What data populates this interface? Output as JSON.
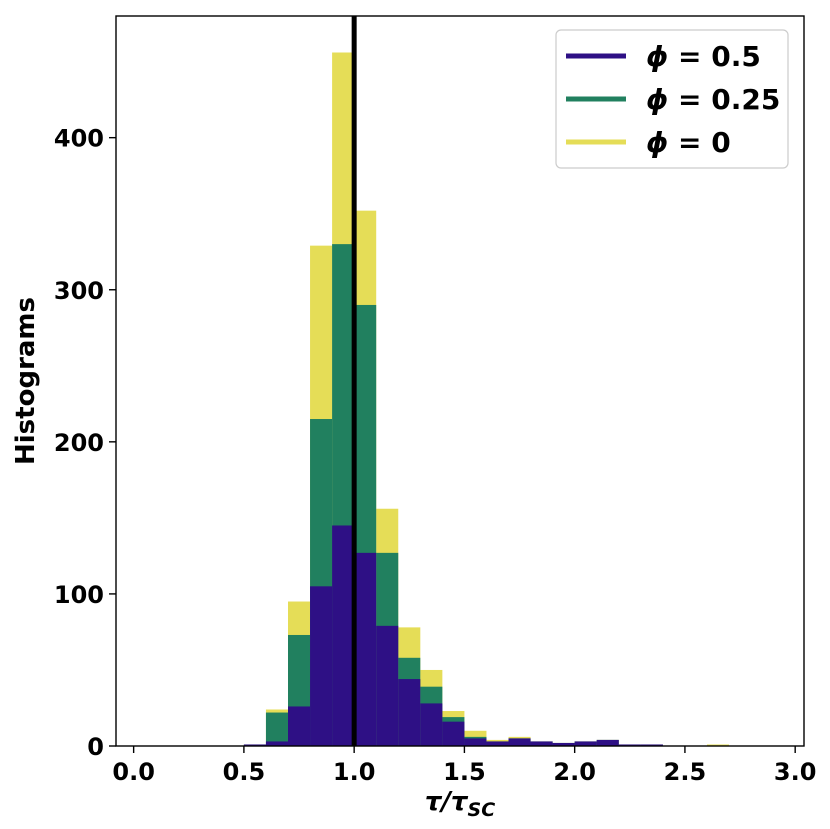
{
  "chart_data": {
    "type": "bar",
    "subtype": "overlaid-histogram",
    "xlabel": "τ/τ_SC",
    "xlabel_main": "τ/τ",
    "xlabel_sub": "SC",
    "ylabel": "Histograms",
    "xlim": [
      -0.08,
      3.04
    ],
    "ylim": [
      0,
      480
    ],
    "xticks": [
      0.0,
      0.5,
      1.0,
      1.5,
      2.0,
      2.5,
      3.0
    ],
    "xtick_labels": [
      "0.0",
      "0.5",
      "1.0",
      "1.5",
      "2.0",
      "2.5",
      "3.0"
    ],
    "yticks": [
      0,
      100,
      200,
      300,
      400
    ],
    "ytick_labels": [
      "0",
      "100",
      "200",
      "300",
      "400"
    ],
    "grid": false,
    "legend_position": "top-right",
    "bin_width": 0.1,
    "reference_line": {
      "x": 1.0,
      "color": "#000000"
    },
    "series": [
      {
        "name": "ϕ = 0",
        "legend_label": "ϕ = 0",
        "color": "#e5dd57",
        "bins": [
          0.5,
          0.6,
          0.7,
          0.8,
          0.9,
          1.0,
          1.1,
          1.2,
          1.3,
          1.4,
          1.5,
          1.6,
          1.7,
          1.8,
          1.9,
          2.0,
          2.1,
          2.2,
          2.3,
          2.6
        ],
        "values": [
          1,
          24,
          95,
          329,
          456,
          352,
          156,
          78,
          50,
          23,
          10,
          4,
          6,
          3,
          2,
          3,
          4,
          1,
          1,
          1
        ]
      },
      {
        "name": "ϕ = 0.25",
        "legend_label": "ϕ = 0.25",
        "color": "#21805f",
        "bins": [
          0.5,
          0.6,
          0.7,
          0.8,
          0.9,
          1.0,
          1.1,
          1.2,
          1.3,
          1.4,
          1.5,
          1.6,
          1.7,
          1.8,
          1.9,
          2.0,
          2.1,
          2.2,
          2.3
        ],
        "values": [
          1,
          22,
          73,
          215,
          330,
          290,
          127,
          58,
          39,
          19,
          6,
          3,
          5,
          3,
          2,
          3,
          4,
          1,
          1
        ]
      },
      {
        "name": "ϕ = 0.5",
        "legend_label": "ϕ = 0.5",
        "color": "#2e1085",
        "bins": [
          0.5,
          0.6,
          0.7,
          0.8,
          0.9,
          1.0,
          1.1,
          1.2,
          1.3,
          1.4,
          1.5,
          1.6,
          1.7,
          1.8,
          1.9,
          2.0,
          2.1,
          2.2,
          2.3
        ],
        "values": [
          1,
          3,
          26,
          105,
          145,
          127,
          79,
          44,
          28,
          16,
          5,
          3,
          5,
          3,
          2,
          3,
          4,
          1,
          1
        ]
      }
    ],
    "legend_order": [
      "ϕ = 0.5",
      "ϕ = 0.25",
      "ϕ = 0"
    ],
    "legend_parts": [
      {
        "sym": "ϕ",
        "rest": " = 0.5"
      },
      {
        "sym": "ϕ",
        "rest": " = 0.25"
      },
      {
        "sym": "ϕ",
        "rest": " = 0"
      }
    ]
  }
}
